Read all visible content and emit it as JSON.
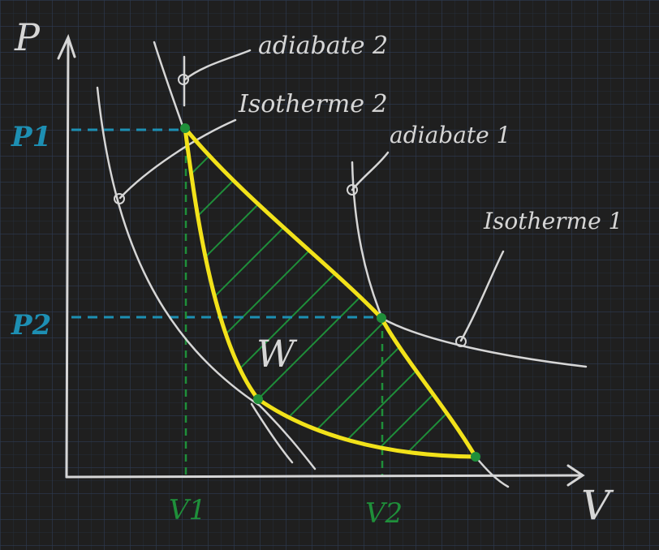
{
  "colors": {
    "background": "#1f1f1f",
    "grid_major": "#2d3a52",
    "grid_minor": "#262d3a",
    "chalk": "#d6d6d6",
    "cycle": "#f2e21a",
    "points": "#1f8f3a",
    "hatch": "#1f8f3a",
    "pressure_guides": "#1d8fb3"
  },
  "axes": {
    "y_label": "P",
    "x_label": "V"
  },
  "markers": {
    "p1": "P1",
    "p2": "P2",
    "v1": "V1",
    "v2": "V2"
  },
  "curve_labels": {
    "adiabat2": "adiabate 2",
    "isotherm2": "Isotherme 2",
    "adiabat1": "adiabate 1",
    "isotherm1": "Isotherme 1"
  },
  "work_label": "W"
}
